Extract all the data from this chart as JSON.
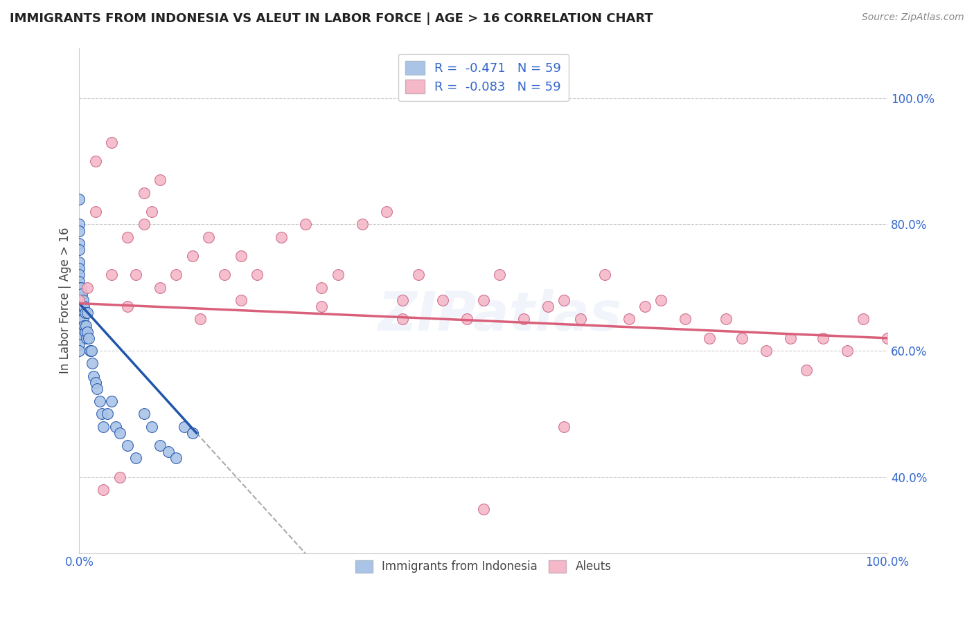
{
  "title": "IMMIGRANTS FROM INDONESIA VS ALEUT IN LABOR FORCE | AGE > 16 CORRELATION CHART",
  "source": "Source: ZipAtlas.com",
  "ylabel": "In Labor Force | Age > 16",
  "xlim": [
    0.0,
    1.0
  ],
  "ylim": [
    0.28,
    1.08
  ],
  "x_tick_labels": [
    "0.0%",
    "",
    "",
    "",
    "",
    "100.0%"
  ],
  "x_tick_vals": [
    0.0,
    0.2,
    0.4,
    0.6,
    0.8,
    1.0
  ],
  "y_tick_labels": [
    "40.0%",
    "60.0%",
    "80.0%",
    "100.0%"
  ],
  "y_tick_vals": [
    0.4,
    0.6,
    0.8,
    1.0
  ],
  "watermark": "ZIPatlas",
  "legend_r1": "-0.471",
  "legend_n1": "59",
  "legend_r2": "-0.083",
  "legend_n2": "59",
  "legend_label1": "Immigrants from Indonesia",
  "legend_label2": "Aleuts",
  "color_indonesia": "#aac4e8",
  "color_aleut": "#f4b8c8",
  "color_line_indonesia": "#2255aa",
  "color_line_aleut": "#d9607a",
  "background_color": "#ffffff",
  "grid_color": "#cccccc",
  "indo_x": [
    0.0,
    0.0,
    0.0,
    0.0,
    0.0,
    0.0,
    0.0,
    0.0,
    0.0,
    0.0,
    0.0,
    0.0,
    0.0,
    0.0,
    0.0,
    0.0,
    0.0,
    0.0,
    0.0,
    0.0,
    0.002,
    0.002,
    0.003,
    0.003,
    0.004,
    0.004,
    0.005,
    0.005,
    0.006,
    0.006,
    0.007,
    0.007,
    0.008,
    0.009,
    0.01,
    0.01,
    0.012,
    0.013,
    0.015,
    0.016,
    0.018,
    0.02,
    0.022,
    0.025,
    0.028,
    0.03,
    0.035,
    0.04,
    0.045,
    0.05,
    0.06,
    0.07,
    0.08,
    0.09,
    0.1,
    0.11,
    0.12,
    0.13,
    0.14
  ],
  "indo_y": [
    0.84,
    0.8,
    0.79,
    0.77,
    0.76,
    0.74,
    0.73,
    0.72,
    0.71,
    0.7,
    0.69,
    0.68,
    0.67,
    0.66,
    0.65,
    0.64,
    0.63,
    0.62,
    0.61,
    0.6,
    0.7,
    0.68,
    0.69,
    0.66,
    0.67,
    0.65,
    0.68,
    0.65,
    0.67,
    0.64,
    0.66,
    0.63,
    0.64,
    0.62,
    0.66,
    0.63,
    0.62,
    0.6,
    0.6,
    0.58,
    0.56,
    0.55,
    0.54,
    0.52,
    0.5,
    0.48,
    0.5,
    0.52,
    0.48,
    0.47,
    0.45,
    0.43,
    0.5,
    0.48,
    0.45,
    0.44,
    0.43,
    0.48,
    0.47
  ],
  "aleut_x": [
    0.0,
    0.01,
    0.02,
    0.03,
    0.04,
    0.05,
    0.06,
    0.07,
    0.08,
    0.09,
    0.1,
    0.12,
    0.14,
    0.16,
    0.18,
    0.2,
    0.22,
    0.25,
    0.28,
    0.3,
    0.32,
    0.35,
    0.38,
    0.4,
    0.42,
    0.45,
    0.48,
    0.5,
    0.52,
    0.55,
    0.58,
    0.6,
    0.62,
    0.65,
    0.68,
    0.7,
    0.72,
    0.75,
    0.78,
    0.8,
    0.82,
    0.85,
    0.88,
    0.9,
    0.92,
    0.95,
    0.97,
    1.0,
    0.02,
    0.04,
    0.06,
    0.08,
    0.1,
    0.15,
    0.2,
    0.3,
    0.4,
    0.5,
    0.6
  ],
  "aleut_y": [
    0.68,
    0.7,
    0.9,
    0.38,
    0.72,
    0.4,
    0.78,
    0.72,
    0.8,
    0.82,
    0.87,
    0.72,
    0.75,
    0.78,
    0.72,
    0.68,
    0.72,
    0.78,
    0.8,
    0.67,
    0.72,
    0.8,
    0.82,
    0.68,
    0.72,
    0.68,
    0.65,
    0.68,
    0.72,
    0.65,
    0.67,
    0.68,
    0.65,
    0.72,
    0.65,
    0.67,
    0.68,
    0.65,
    0.62,
    0.65,
    0.62,
    0.6,
    0.62,
    0.57,
    0.62,
    0.6,
    0.65,
    0.62,
    0.82,
    0.93,
    0.67,
    0.85,
    0.7,
    0.65,
    0.75,
    0.7,
    0.65,
    0.35,
    0.48
  ],
  "indo_line_x0": 0.0,
  "indo_line_x1": 0.145,
  "indo_line_y0": 0.675,
  "indo_line_y1": 0.47,
  "aleut_line_x0": 0.0,
  "aleut_line_x1": 1.0,
  "aleut_line_y0": 0.675,
  "aleut_line_y1": 0.62
}
